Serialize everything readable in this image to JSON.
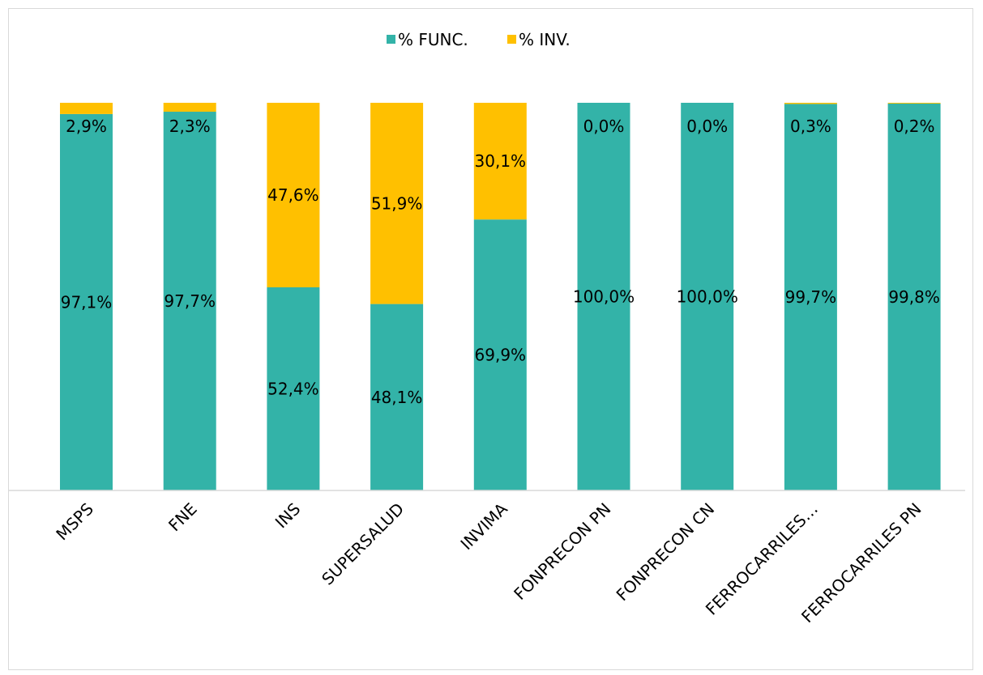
{
  "chart_data": {
    "type": "bar",
    "stacked": true,
    "normalized_percent": true,
    "categories": [
      "MSPS",
      "FNE",
      "INS",
      "SUPERSALUD",
      "INVIMA",
      "FONPRECON PN",
      "FONPRECON CN",
      "FERROCARRILES…",
      "FERROCARRILES PN"
    ],
    "series": [
      {
        "name": "% FUNC.",
        "color": "#33b3a8",
        "values": [
          97.1,
          97.7,
          52.4,
          48.1,
          69.9,
          100.0,
          100.0,
          99.7,
          99.8
        ],
        "labels": [
          "97,1%",
          "97,7%",
          "52,4%",
          "48,1%",
          "69,9%",
          "100,0%",
          "100,0%",
          "99,7%",
          "99,8%"
        ]
      },
      {
        "name": "% INV.",
        "color": "#ffc000",
        "values": [
          2.9,
          2.3,
          47.6,
          51.9,
          30.1,
          0.0,
          0.0,
          0.3,
          0.2
        ],
        "labels": [
          "2,9%",
          "2,3%",
          "47,6%",
          "51,9%",
          "30,1%",
          "0,0%",
          "0,0%",
          "0,3%",
          "0,2%"
        ]
      }
    ],
    "ylim": [
      0,
      100
    ],
    "legend_position": "top-center",
    "grid": false
  }
}
